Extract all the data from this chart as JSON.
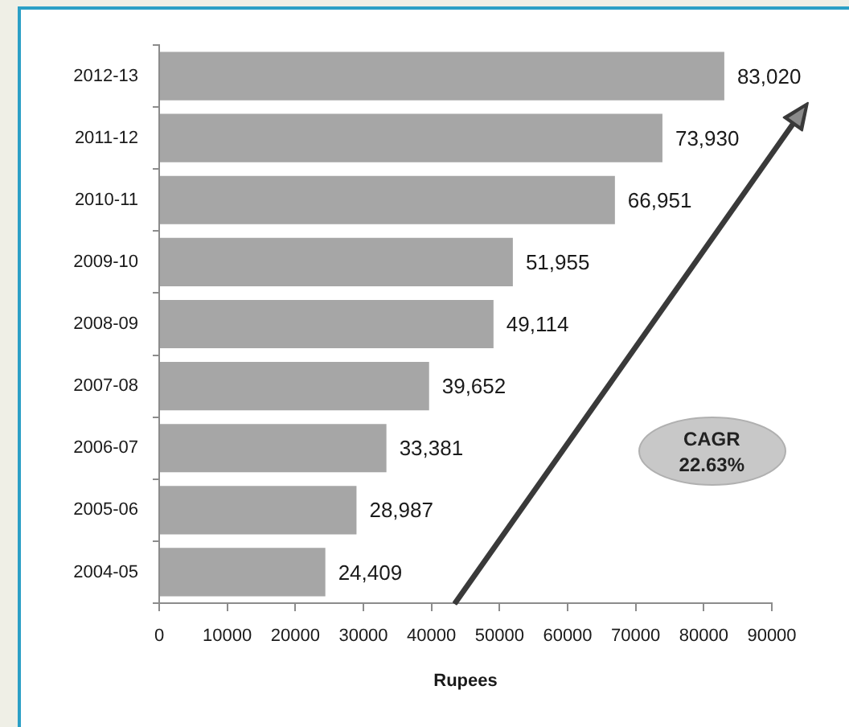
{
  "chart_data": {
    "type": "bar",
    "orientation": "horizontal",
    "categories": [
      "2012-13",
      "2011-12",
      "2010-11",
      "2009-10",
      "2008-09",
      "2007-08",
      "2006-07",
      "2005-06",
      "2004-05"
    ],
    "values": [
      83020,
      73930,
      66951,
      51955,
      49114,
      39652,
      33381,
      28987,
      24409
    ],
    "value_labels": [
      "83,020",
      "73,930",
      "66,951",
      "51,955",
      "49,114",
      "39,652",
      "33,381",
      "28,987",
      "24,409"
    ],
    "color": "#a6a6a6",
    "xlabel": "Rupees",
    "xlim": [
      0,
      90000
    ],
    "xticks": [
      0,
      10000,
      20000,
      30000,
      40000,
      50000,
      60000,
      70000,
      80000,
      90000
    ],
    "grid": false,
    "legend": false,
    "annotations": [
      "CAGR\n22.63%"
    ]
  }
}
